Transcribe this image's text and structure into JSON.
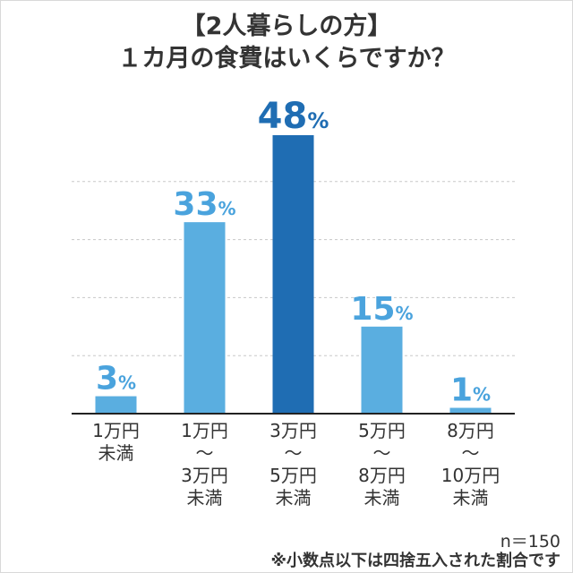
{
  "colors": {
    "bar": "#5aaee0",
    "bar_highlight": "#1f6db3",
    "label": "#4aa3dd",
    "label_highlight": "#1f6db3",
    "grid": "#c8c8c8",
    "axis": "#222222",
    "text": "#333333"
  },
  "footer": {
    "n": "n＝150",
    "note": "※小数点以下は四捨五入された割合です"
  },
  "chart_data": {
    "type": "bar",
    "title_lines": [
      "【2人暮らしの方】",
      "１カ月の食費はいくらですか？"
    ],
    "categories": [
      [
        "1万円",
        "未満"
      ],
      [
        "1万円",
        "〜",
        "3万円",
        "未満"
      ],
      [
        "3万円",
        "〜",
        "5万円",
        "未満"
      ],
      [
        "5万円",
        "〜",
        "8万円",
        "未満"
      ],
      [
        "8万円",
        "〜",
        "10万円",
        "未満"
      ]
    ],
    "values": [
      3,
      33,
      48,
      15,
      1
    ],
    "value_suffix": "%",
    "highlight_index": 2,
    "ylim": [
      0,
      50
    ],
    "grid": true,
    "legend": "none"
  }
}
